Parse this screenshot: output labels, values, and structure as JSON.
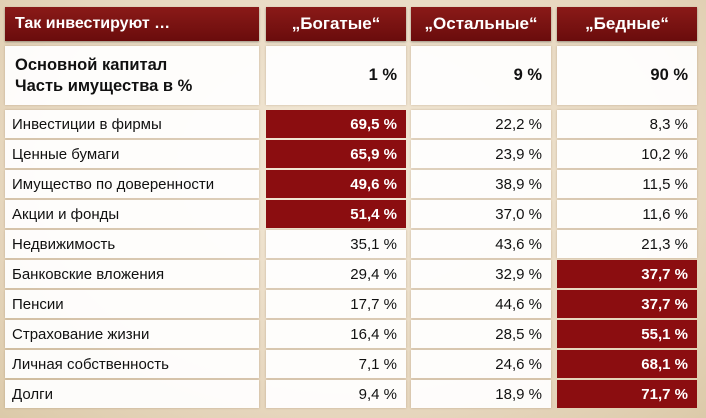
{
  "header": {
    "title": "Так инвестируют …",
    "columns": [
      "„Богатые“",
      "„Остальные“",
      "„Бедные“"
    ]
  },
  "capital": {
    "label_line1": "Основной капитал",
    "label_line2": "Часть имущества в  %",
    "values": [
      "1 %",
      "9 %",
      "90 %"
    ]
  },
  "colors": {
    "highlight": "#8b0d10",
    "header": "#7a1212"
  },
  "rows": [
    {
      "label": "Инвестиции в фирмы",
      "values": [
        "69,5 %",
        "22,2 %",
        "8,3 %"
      ],
      "highlight": [
        true,
        false,
        false
      ]
    },
    {
      "label": "Ценные бумаги",
      "values": [
        "65,9 %",
        "23,9 %",
        "10,2 %"
      ],
      "highlight": [
        true,
        false,
        false
      ]
    },
    {
      "label": "Имущество по доверенности",
      "values": [
        "49,6 %",
        "38,9 %",
        "11,5 %"
      ],
      "highlight": [
        true,
        false,
        false
      ]
    },
    {
      "label": "Акции и фонды",
      "values": [
        "51,4 %",
        "37,0 %",
        "11,6 %"
      ],
      "highlight": [
        true,
        false,
        false
      ]
    },
    {
      "label": "Недвижимость",
      "values": [
        "35,1 %",
        "43,6 %",
        "21,3 %"
      ],
      "highlight": [
        false,
        false,
        false
      ]
    },
    {
      "label": "Банковские вложения",
      "values": [
        "29,4 %",
        "32,9 %",
        "37,7 %"
      ],
      "highlight": [
        false,
        false,
        true
      ]
    },
    {
      "label": "Пенсии",
      "values": [
        "17,7 %",
        "44,6 %",
        "37,7 %"
      ],
      "highlight": [
        false,
        false,
        true
      ]
    },
    {
      "label": "Страхование жизни",
      "values": [
        "16,4 %",
        "28,5 %",
        "55,1 %"
      ],
      "highlight": [
        false,
        false,
        true
      ]
    },
    {
      "label": "Личная собственность",
      "values": [
        "7,1 %",
        "24,6 %",
        "68,1 %"
      ],
      "highlight": [
        false,
        false,
        true
      ]
    },
    {
      "label": "Долги",
      "values": [
        "9,4 %",
        "18,9 %",
        "71,7 %"
      ],
      "highlight": [
        false,
        false,
        true
      ]
    }
  ]
}
